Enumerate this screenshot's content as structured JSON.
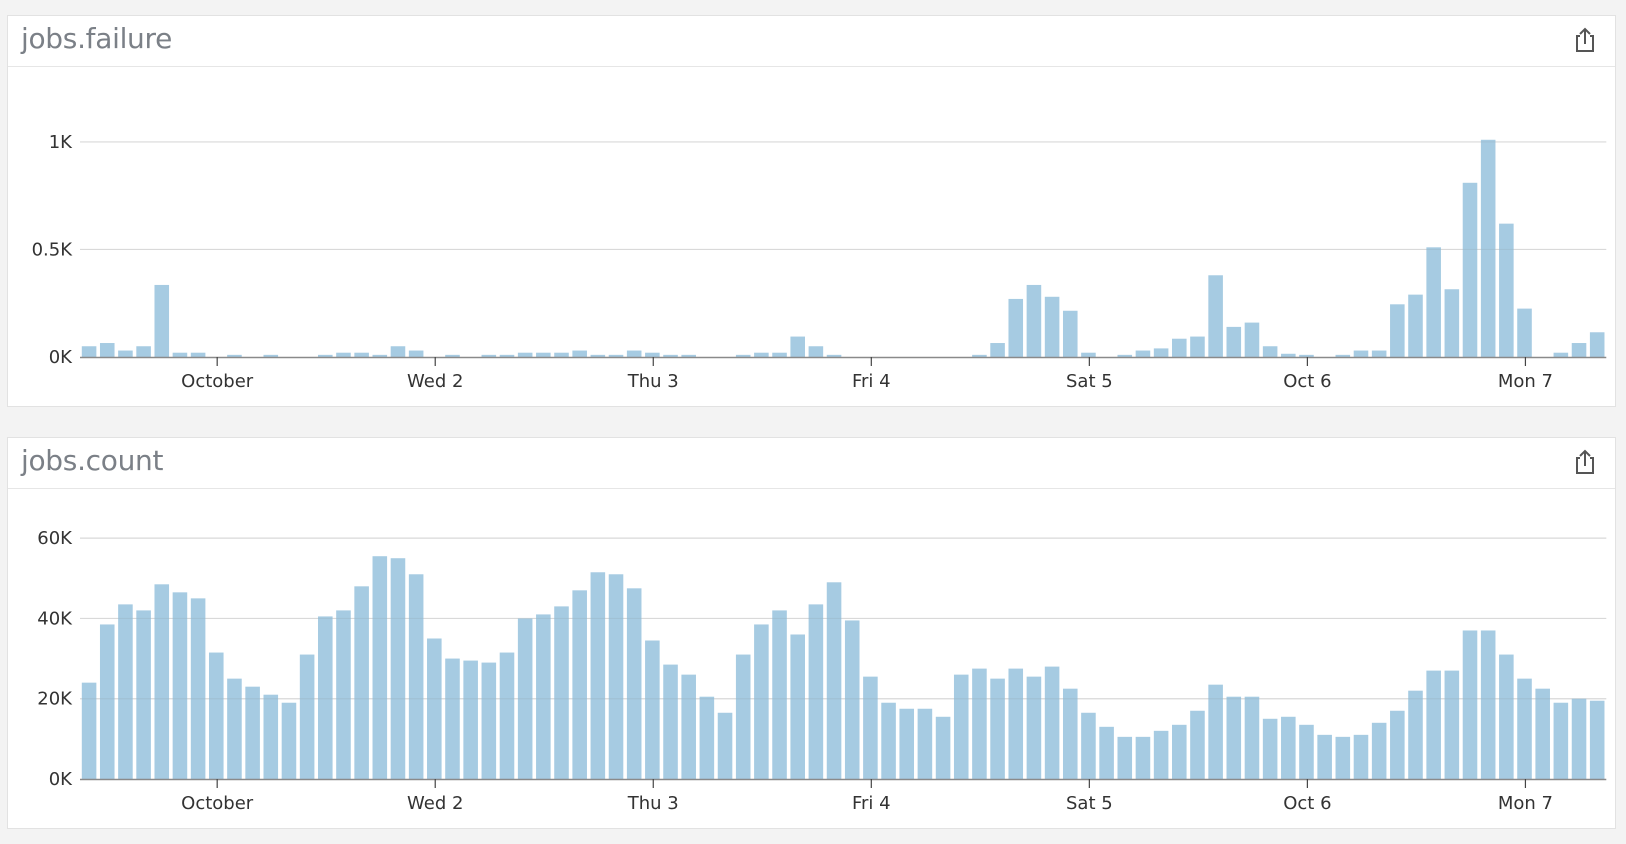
{
  "colors": {
    "bar": "#a6cbe2",
    "grid": "#e6e6e6",
    "axis": "#8a8a8a",
    "title": "#7b8087"
  },
  "icons": {
    "export": "export-share-icon"
  },
  "chart_data": [
    {
      "type": "bar",
      "title": "jobs.failure",
      "xlabel": "",
      "ylabel": "",
      "ylim": [
        0,
        1260
      ],
      "yticks": [
        {
          "value": 0,
          "label": "0K"
        },
        {
          "value": 500,
          "label": "0.5K"
        },
        {
          "value": 1000,
          "label": "1K"
        }
      ],
      "xticks": [
        "October",
        "Wed 2",
        "Thu 3",
        "Fri 4",
        "Sat 5",
        "Oct 6",
        "Mon 7"
      ],
      "grid": true,
      "values": [
        50,
        65,
        30,
        50,
        335,
        20,
        20,
        0,
        10,
        0,
        10,
        0,
        0,
        10,
        20,
        20,
        10,
        50,
        30,
        0,
        10,
        0,
        10,
        10,
        20,
        20,
        20,
        30,
        10,
        10,
        30,
        20,
        10,
        10,
        0,
        0,
        10,
        20,
        20,
        95,
        50,
        10,
        0,
        0,
        0,
        0,
        0,
        0,
        0,
        10,
        65,
        270,
        335,
        280,
        215,
        20,
        0,
        10,
        30,
        40,
        85,
        95,
        380,
        140,
        160,
        50,
        15,
        10,
        0,
        10,
        30,
        30,
        245,
        290,
        510,
        315,
        810,
        1010,
        620,
        225,
        0,
        20,
        65,
        115
      ]
    },
    {
      "type": "bar",
      "title": "jobs.count",
      "xlabel": "",
      "ylabel": "",
      "ylim": [
        0,
        70000
      ],
      "yticks": [
        {
          "value": 0,
          "label": "0K"
        },
        {
          "value": 20000,
          "label": "20K"
        },
        {
          "value": 40000,
          "label": "40K"
        },
        {
          "value": 60000,
          "label": "60K"
        }
      ],
      "xticks": [
        "October",
        "Wed 2",
        "Thu 3",
        "Fri 4",
        "Sat 5",
        "Oct 6",
        "Mon 7"
      ],
      "grid": true,
      "values": [
        24000,
        38500,
        43500,
        42000,
        48500,
        46500,
        45000,
        31500,
        25000,
        23000,
        21000,
        19000,
        31000,
        40500,
        42000,
        48000,
        55500,
        55000,
        51000,
        35000,
        30000,
        29500,
        29000,
        31500,
        40000,
        41000,
        43000,
        47000,
        51500,
        51000,
        47500,
        34500,
        28500,
        26000,
        20500,
        16500,
        31000,
        38500,
        42000,
        36000,
        43500,
        49000,
        39500,
        25500,
        19000,
        17500,
        17500,
        15500,
        26000,
        27500,
        25000,
        27500,
        25500,
        28000,
        22500,
        16500,
        13000,
        10500,
        10500,
        12000,
        13500,
        17000,
        23500,
        20500,
        20500,
        15000,
        15500,
        13500,
        11000,
        10500,
        11000,
        14000,
        17000,
        22000,
        27000,
        27000,
        37000,
        37000,
        31000,
        25000,
        22500,
        19000,
        20000,
        19500
      ]
    }
  ]
}
